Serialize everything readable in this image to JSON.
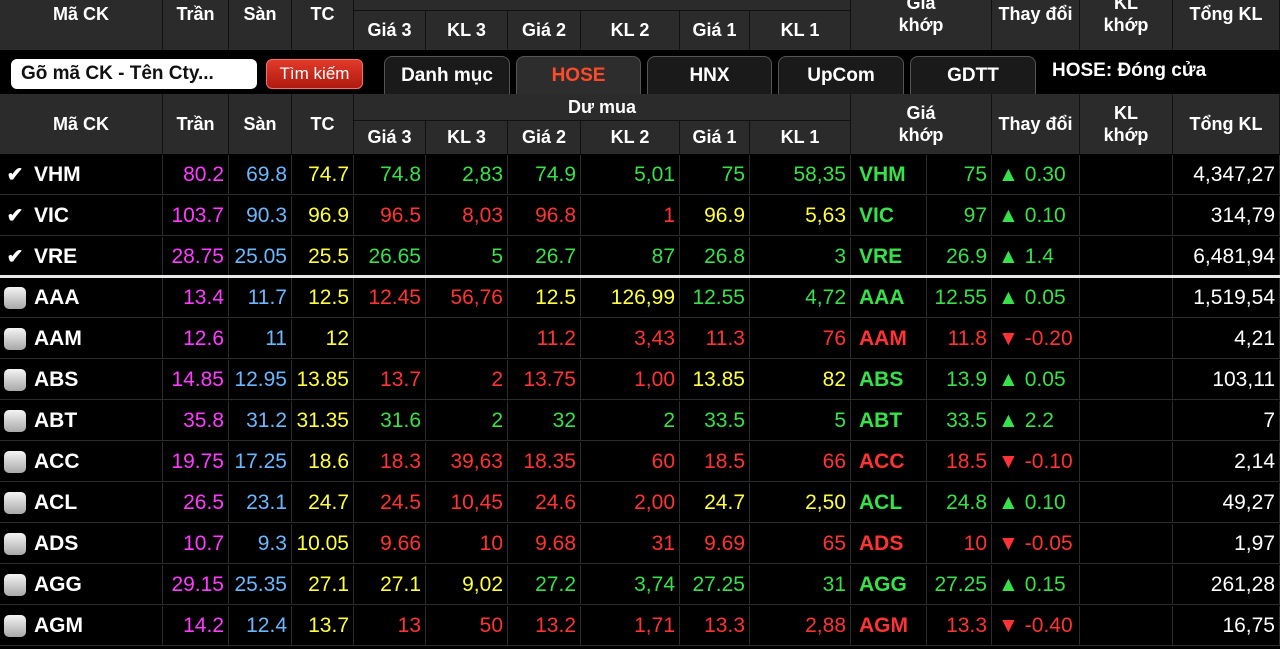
{
  "headers": {
    "symbol": "Mã CK",
    "ceiling": "Trần",
    "floor": "Sàn",
    "ref": "TC",
    "buy_group": "Dư mua",
    "price3": "Giá 3",
    "vol3": "KL 3",
    "price2": "Giá 2",
    "vol2": "KL 2",
    "price1": "Giá 1",
    "vol1": "KL 1",
    "match_price_l1": "Giá",
    "match_price_l2": "khớp",
    "change": "Thay đổi",
    "match_vol_l1": "KL",
    "match_vol_l2": "khớp",
    "total": "Tổng KL"
  },
  "search": {
    "placeholder": "Gõ mã CK - Tên Cty...",
    "button": "Tìm kiếm"
  },
  "tabs": [
    "Danh mục",
    "HOSE",
    "HNX",
    "UpCom",
    "GDTT"
  ],
  "active_tab": "HOSE",
  "market_status": "HOSE:  Đóng cửa",
  "rows": [
    {
      "checked": true,
      "sym": "VHM",
      "tran": "80.2",
      "san": "69.8",
      "tc": "74.7",
      "g3": "74.8",
      "k3": "2,83",
      "g2": "74.9",
      "k2": "5,01",
      "g1": "75",
      "k1": "58,35",
      "gk": "75",
      "tdir": "▲",
      "td": "0.30",
      "klk": "",
      "tong": "4,347,27",
      "c3": "green",
      "c2": "green",
      "c1": "green",
      "ck": "green"
    },
    {
      "checked": true,
      "sym": "VIC",
      "tran": "103.7",
      "san": "90.3",
      "tc": "96.9",
      "g3": "96.5",
      "k3": "8,03",
      "g2": "96.8",
      "k2": "1",
      "g1": "96.9",
      "k1": "5,63",
      "gk": "97",
      "tdir": "▲",
      "td": "0.10",
      "klk": "",
      "tong": "314,79",
      "c3": "red",
      "c2": "red",
      "c1": "yel",
      "ck": "green"
    },
    {
      "checked": true,
      "sym": "VRE",
      "tran": "28.75",
      "san": "25.05",
      "tc": "25.5",
      "g3": "26.65",
      "k3": "5",
      "g2": "26.7",
      "k2": "87",
      "g1": "26.8",
      "k1": "3",
      "gk": "26.9",
      "tdir": "▲",
      "td": "1.4",
      "klk": "",
      "tong": "6,481,94",
      "c3": "green",
      "c2": "green",
      "c1": "green",
      "ck": "green"
    },
    {
      "checked": false,
      "sym": "AAA",
      "tran": "13.4",
      "san": "11.7",
      "tc": "12.5",
      "g3": "12.45",
      "k3": "56,76",
      "g2": "12.5",
      "k2": "126,99",
      "g1": "12.55",
      "k1": "4,72",
      "gk": "12.55",
      "tdir": "▲",
      "td": "0.05",
      "klk": "",
      "tong": "1,519,54",
      "c3": "red",
      "c2": "yel",
      "c1": "green",
      "ck": "green"
    },
    {
      "checked": false,
      "sym": "AAM",
      "tran": "12.6",
      "san": "11",
      "tc": "12",
      "g3": "",
      "k3": "",
      "g2": "11.2",
      "k2": "3,43",
      "g1": "11.3",
      "k1": "76",
      "gk": "11.8",
      "tdir": "▼",
      "td": "-0.20",
      "klk": "",
      "tong": "4,21",
      "c3": "red",
      "c2": "red",
      "c1": "red",
      "ck": "red"
    },
    {
      "checked": false,
      "sym": "ABS",
      "tran": "14.85",
      "san": "12.95",
      "tc": "13.85",
      "g3": "13.7",
      "k3": "2",
      "g2": "13.75",
      "k2": "1,00",
      "g1": "13.85",
      "k1": "82",
      "gk": "13.9",
      "tdir": "▲",
      "td": "0.05",
      "klk": "",
      "tong": "103,11",
      "c3": "red",
      "c2": "red",
      "c1": "yel",
      "ck": "green"
    },
    {
      "checked": false,
      "sym": "ABT",
      "tran": "35.8",
      "san": "31.2",
      "tc": "31.35",
      "g3": "31.6",
      "k3": "2",
      "g2": "32",
      "k2": "2",
      "g1": "33.5",
      "k1": "5",
      "gk": "33.5",
      "tdir": "▲",
      "td": "2.2",
      "klk": "",
      "tong": "7",
      "c3": "green",
      "c2": "green",
      "c1": "green",
      "ck": "green"
    },
    {
      "checked": false,
      "sym": "ACC",
      "tran": "19.75",
      "san": "17.25",
      "tc": "18.6",
      "g3": "18.3",
      "k3": "39,63",
      "g2": "18.35",
      "k2": "60",
      "g1": "18.5",
      "k1": "66",
      "gk": "18.5",
      "tdir": "▼",
      "td": "-0.10",
      "klk": "",
      "tong": "2,14",
      "c3": "red",
      "c2": "red",
      "c1": "red",
      "ck": "red"
    },
    {
      "checked": false,
      "sym": "ACL",
      "tran": "26.5",
      "san": "23.1",
      "tc": "24.7",
      "g3": "24.5",
      "k3": "10,45",
      "g2": "24.6",
      "k2": "2,00",
      "g1": "24.7",
      "k1": "2,50",
      "gk": "24.8",
      "tdir": "▲",
      "td": "0.10",
      "klk": "",
      "tong": "49,27",
      "c3": "red",
      "c2": "red",
      "c1": "yel",
      "ck": "green"
    },
    {
      "checked": false,
      "sym": "ADS",
      "tran": "10.7",
      "san": "9.3",
      "tc": "10.05",
      "g3": "9.66",
      "k3": "10",
      "g2": "9.68",
      "k2": "31",
      "g1": "9.69",
      "k1": "65",
      "gk": "10",
      "tdir": "▼",
      "td": "-0.05",
      "klk": "",
      "tong": "1,97",
      "c3": "red",
      "c2": "red",
      "c1": "red",
      "ck": "red"
    },
    {
      "checked": false,
      "sym": "AGG",
      "tran": "29.15",
      "san": "25.35",
      "tc": "27.1",
      "g3": "27.1",
      "k3": "9,02",
      "g2": "27.2",
      "k2": "3,74",
      "g1": "27.25",
      "k1": "31",
      "gk": "27.25",
      "tdir": "▲",
      "td": "0.15",
      "klk": "",
      "tong": "261,28",
      "c3": "yel",
      "c2": "green",
      "c1": "green",
      "ck": "green"
    },
    {
      "checked": false,
      "sym": "AGM",
      "tran": "14.2",
      "san": "12.4",
      "tc": "13.7",
      "g3": "13",
      "k3": "50",
      "g2": "13.2",
      "k2": "1,71",
      "g1": "13.3",
      "k1": "2,88",
      "gk": "13.3",
      "tdir": "▼",
      "td": "-0.40",
      "klk": "",
      "tong": "16,75",
      "c3": "red",
      "c2": "red",
      "c1": "red",
      "ck": "red"
    }
  ]
}
